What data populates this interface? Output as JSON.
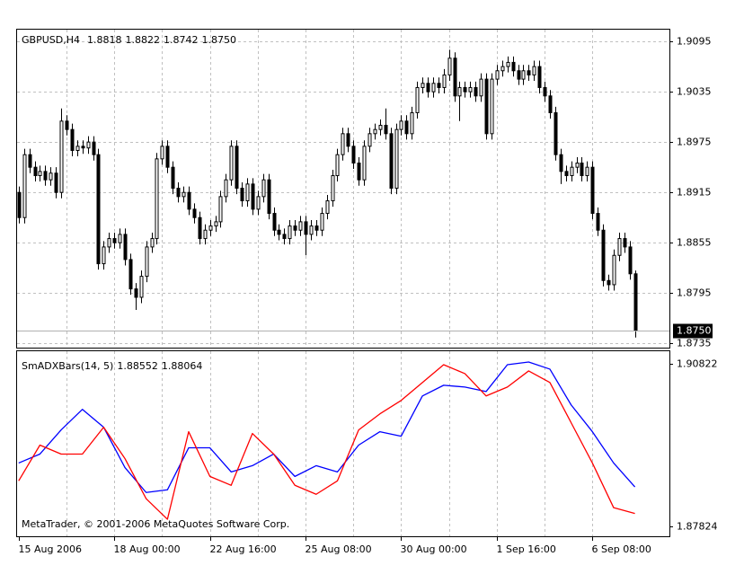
{
  "chart_data": [
    {
      "type": "candlestick",
      "title": "GBPUSD,H4",
      "open": [
        1.8915,
        1.8885,
        1.896,
        1.8945,
        1.8935,
        1.894,
        1.893,
        1.8938,
        1.8915,
        1.9,
        1.899,
        1.8965,
        1.897,
        1.8968,
        1.8975,
        1.896,
        1.883,
        1.885,
        1.886,
        1.8855,
        1.8865,
        1.8835,
        1.88,
        1.879,
        1.8815,
        1.885,
        1.886,
        1.8955,
        1.897,
        1.8945,
        1.892,
        1.891,
        1.8915,
        1.8895,
        1.8885,
        1.886,
        1.887,
        1.8875,
        1.888,
        1.891,
        1.893,
        1.897,
        1.892,
        1.8905,
        1.8925,
        1.8895,
        1.891,
        1.893,
        1.889,
        1.887,
        1.8865,
        1.886,
        1.8875,
        1.887,
        1.888,
        1.8865,
        1.8875,
        1.887,
        1.889,
        1.8905,
        1.8935,
        1.896,
        1.8985,
        1.897,
        1.895,
        1.893,
        1.897,
        1.8985,
        1.899,
        1.8995,
        1.8985,
        1.892,
        1.899,
        1.9,
        1.8985,
        1.901,
        1.904,
        1.9045,
        1.9035,
        1.9045,
        1.904,
        1.9055,
        1.9075,
        1.903,
        1.904,
        1.9035,
        1.904,
        1.903,
        1.905,
        1.8985,
        1.905,
        1.906,
        1.9065,
        1.907,
        1.906,
        1.905,
        1.906,
        1.9055,
        1.9065,
        1.904,
        1.903,
        1.901,
        1.896,
        1.894,
        1.8935,
        1.8945,
        1.895,
        1.8935,
        1.8945,
        1.889,
        1.887,
        1.881,
        1.8805,
        1.884,
        1.886,
        1.885,
        1.8818
      ],
      "high": [
        1.8922,
        1.8967,
        1.8967,
        1.8952,
        1.8947,
        1.8947,
        1.8945,
        1.8945,
        1.9015,
        1.9007,
        1.8997,
        1.8977,
        1.8977,
        1.8982,
        1.8982,
        1.8967,
        1.8857,
        1.8867,
        1.8867,
        1.8872,
        1.8872,
        1.8842,
        1.8807,
        1.8822,
        1.8857,
        1.8867,
        1.8962,
        1.8977,
        1.8977,
        1.8952,
        1.8927,
        1.8922,
        1.8922,
        1.8902,
        1.8892,
        1.8877,
        1.8882,
        1.8887,
        1.8917,
        1.8937,
        1.8977,
        1.8977,
        1.8927,
        1.8932,
        1.8932,
        1.8917,
        1.8937,
        1.8937,
        1.8897,
        1.8877,
        1.8872,
        1.8882,
        1.8882,
        1.8887,
        1.8887,
        1.8882,
        1.8882,
        1.8897,
        1.8912,
        1.8942,
        1.8967,
        1.8992,
        1.8992,
        1.8977,
        1.8957,
        1.8977,
        1.8992,
        1.8997,
        1.9002,
        1.9015,
        1.8992,
        1.8997,
        1.9007,
        1.9007,
        1.9017,
        1.9047,
        1.9052,
        1.9052,
        1.9052,
        1.9052,
        1.9062,
        1.9085,
        1.9082,
        1.9047,
        1.9047,
        1.9047,
        1.9047,
        1.9057,
        1.9057,
        1.9057,
        1.9067,
        1.9072,
        1.9077,
        1.9077,
        1.9067,
        1.9067,
        1.9067,
        1.9072,
        1.9072,
        1.9047,
        1.9037,
        1.9017,
        1.8967,
        1.8947,
        1.8952,
        1.8957,
        1.8957,
        1.8952,
        1.8952,
        1.8897,
        1.8877,
        1.8817,
        1.8847,
        1.8867,
        1.8867,
        1.8857,
        1.8822
      ],
      "low": [
        1.8878,
        1.8878,
        1.8938,
        1.8928,
        1.8928,
        1.8923,
        1.8923,
        1.8908,
        1.8908,
        1.8983,
        1.8958,
        1.8958,
        1.8961,
        1.8961,
        1.8953,
        1.8823,
        1.8823,
        1.8843,
        1.8848,
        1.8848,
        1.8828,
        1.8793,
        1.8775,
        1.8783,
        1.8808,
        1.8843,
        1.8853,
        1.8948,
        1.8938,
        1.8913,
        1.8903,
        1.8903,
        1.8888,
        1.8878,
        1.8853,
        1.8853,
        1.8863,
        1.8868,
        1.8873,
        1.8903,
        1.8923,
        1.8913,
        1.8898,
        1.8898,
        1.8888,
        1.8888,
        1.8903,
        1.8883,
        1.8863,
        1.8858,
        1.8853,
        1.8853,
        1.8863,
        1.8863,
        1.884,
        1.8858,
        1.8863,
        1.8863,
        1.8883,
        1.8898,
        1.8928,
        1.8953,
        1.8963,
        1.8943,
        1.8923,
        1.8923,
        1.8963,
        1.8978,
        1.8983,
        1.8978,
        1.8913,
        1.8913,
        1.8983,
        1.8978,
        1.8978,
        1.9003,
        1.9033,
        1.9028,
        1.9028,
        1.9033,
        1.9033,
        1.9048,
        1.9023,
        1.9,
        1.9028,
        1.9028,
        1.9023,
        1.9023,
        1.8978,
        1.8978,
        1.9043,
        1.9053,
        1.9058,
        1.9053,
        1.9043,
        1.9043,
        1.9048,
        1.9048,
        1.9033,
        1.9023,
        1.9003,
        1.8953,
        1.8925,
        1.8928,
        1.8928,
        1.8938,
        1.8928,
        1.8928,
        1.8883,
        1.8863,
        1.8803,
        1.8798,
        1.8798,
        1.8833,
        1.8843,
        1.8811,
        1.8742
      ],
      "close": [
        1.8885,
        1.896,
        1.8945,
        1.8935,
        1.894,
        1.893,
        1.8938,
        1.8915,
        1.9,
        1.899,
        1.8965,
        1.897,
        1.8968,
        1.8975,
        1.896,
        1.883,
        1.885,
        1.886,
        1.8855,
        1.8865,
        1.8835,
        1.88,
        1.879,
        1.8815,
        1.885,
        1.886,
        1.8955,
        1.897,
        1.8945,
        1.892,
        1.891,
        1.8915,
        1.8895,
        1.8885,
        1.886,
        1.887,
        1.8875,
        1.888,
        1.891,
        1.893,
        1.897,
        1.892,
        1.8905,
        1.8925,
        1.8895,
        1.891,
        1.893,
        1.889,
        1.887,
        1.8865,
        1.886,
        1.8875,
        1.887,
        1.888,
        1.8865,
        1.8875,
        1.887,
        1.889,
        1.8905,
        1.8935,
        1.896,
        1.8985,
        1.897,
        1.895,
        1.893,
        1.897,
        1.8985,
        1.899,
        1.8995,
        1.8985,
        1.892,
        1.899,
        1.9,
        1.8985,
        1.901,
        1.904,
        1.9045,
        1.9035,
        1.9045,
        1.904,
        1.9055,
        1.9075,
        1.903,
        1.904,
        1.9035,
        1.904,
        1.903,
        1.905,
        1.8985,
        1.905,
        1.906,
        1.9065,
        1.907,
        1.906,
        1.905,
        1.906,
        1.9055,
        1.9065,
        1.904,
        1.903,
        1.901,
        1.896,
        1.894,
        1.8935,
        1.8945,
        1.895,
        1.8935,
        1.8945,
        1.889,
        1.887,
        1.881,
        1.8805,
        1.884,
        1.886,
        1.885,
        1.8818,
        1.875
      ],
      "current_price": {
        "value": 1.875,
        "label": "1.8750"
      },
      "ylim": [
        1.873,
        1.9109
      ],
      "yticks": [
        1.9095,
        1.9035,
        1.8975,
        1.8915,
        1.8855,
        1.8795,
        1.8735
      ],
      "xlim": [
        -0.3,
        122.5
      ],
      "xticks": [
        {
          "value": 0,
          "label": "15 Aug 2006"
        },
        {
          "value": 18,
          "label": "18 Aug 00:00"
        },
        {
          "value": 36,
          "label": "22 Aug 16:00"
        },
        {
          "value": 54,
          "label": "25 Aug 08:00"
        },
        {
          "value": 72,
          "label": "30 Aug 00:00"
        },
        {
          "value": 90,
          "label": "1 Sep 16:00"
        },
        {
          "value": 108,
          "label": "6 Sep 08:00"
        }
      ],
      "grid": true
    },
    {
      "type": "line",
      "title": "SmADXBars(14, 5)",
      "x": [
        0,
        4,
        8,
        12,
        16,
        20,
        24,
        28,
        32,
        36,
        40,
        44,
        48,
        52,
        56,
        60,
        64,
        68,
        72,
        76,
        80,
        84,
        88,
        92,
        96,
        100,
        104,
        108,
        112,
        116
      ],
      "series": [
        {
          "color": "#0000ff",
          "values": [
            1.88993,
            1.89158,
            1.89603,
            1.89982,
            1.89652,
            1.88911,
            1.8845,
            1.88499,
            1.89273,
            1.89273,
            1.88829,
            1.88944,
            1.89158,
            1.88746,
            1.88944,
            1.88829,
            1.89323,
            1.8957,
            1.89487,
            1.90229,
            1.90426,
            1.90393,
            1.90311,
            1.90805,
            1.90854,
            1.90723,
            1.90064,
            1.8957,
            1.88993,
            1.88552
          ]
        },
        {
          "color": "#ff0000",
          "values": [
            1.88664,
            1.89323,
            1.89158,
            1.89158,
            1.89652,
            1.89076,
            1.88335,
            1.87956,
            1.8957,
            1.88746,
            1.88582,
            1.89537,
            1.89158,
            1.88582,
            1.88417,
            1.88664,
            1.89603,
            1.89899,
            1.90146,
            1.90476,
            1.90805,
            1.9064,
            1.90229,
            1.90393,
            1.9069,
            1.90476,
            1.89735,
            1.88993,
            1.8817,
            1.88064
          ]
        }
      ],
      "ylim": [
        1.87643,
        1.91053
      ],
      "yticks": [
        1.90822,
        1.87824
      ],
      "copyright": "MetaTrader, © 2001-2006 MetaQuotes Software Corp."
    }
  ]
}
